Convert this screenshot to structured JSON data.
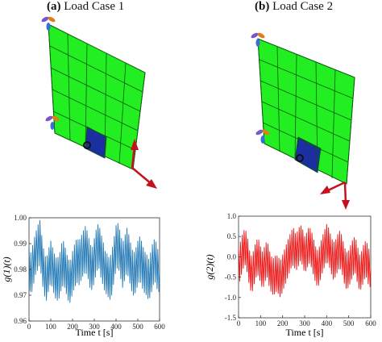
{
  "panels": [
    {
      "id": "a",
      "label_bold": "(a)",
      "label_rest": " Load Case 1"
    },
    {
      "id": "b",
      "label_bold": "(b)",
      "label_rest": " Load Case 2"
    }
  ],
  "colors": {
    "mesh_fill": "#22ee22",
    "mesh_line": "#0a5a0a",
    "loaded_cell": "#1c2fa0",
    "arrow": "#c4121d",
    "series_a": "#1f77b4",
    "series_b": "#ee1111"
  },
  "chart_data": [
    {
      "type": "line",
      "title": "",
      "xlabel": "Time t [s]",
      "ylabel": "g(1)(t)",
      "xlim": [
        0,
        600
      ],
      "ylim": [
        0.96,
        1.0
      ],
      "xticks": [
        "0",
        "100",
        "200",
        "300",
        "400",
        "500",
        "600"
      ],
      "yticks": [
        "0.96",
        "0.97",
        "0.98",
        "0.99",
        "1.00"
      ],
      "grid": false,
      "series": [
        {
          "color": "#1f77b4",
          "x": [
            0,
            10,
            20,
            30,
            40,
            50,
            60,
            70,
            80,
            90,
            100,
            110,
            120,
            130,
            140,
            150,
            160,
            170,
            180,
            190,
            200,
            210,
            220,
            230,
            240,
            250,
            260,
            270,
            280,
            290,
            300,
            310,
            320,
            330,
            340,
            350,
            360,
            370,
            380,
            390,
            400,
            410,
            420,
            430,
            440,
            450,
            460,
            470,
            480,
            490,
            500,
            510,
            520,
            530,
            540,
            550,
            560,
            570,
            580,
            590,
            600
          ],
          "y_mean": [
            0.981,
            0.978,
            0.983,
            0.986,
            0.989,
            0.991,
            0.984,
            0.978,
            0.976,
            0.98,
            0.983,
            0.98,
            0.977,
            0.976,
            0.978,
            0.982,
            0.983,
            0.979,
            0.976,
            0.975,
            0.979,
            0.982,
            0.984,
            0.983,
            0.985,
            0.987,
            0.988,
            0.986,
            0.982,
            0.98,
            0.984,
            0.988,
            0.99,
            0.986,
            0.983,
            0.979,
            0.978,
            0.976,
            0.979,
            0.984,
            0.989,
            0.99,
            0.986,
            0.982,
            0.985,
            0.988,
            0.985,
            0.981,
            0.978,
            0.98,
            0.983,
            0.985,
            0.982,
            0.979,
            0.978,
            0.976,
            0.979,
            0.983,
            0.984,
            0.98,
            0.979
          ],
          "y_low": [
            0.973,
            0.97,
            0.974,
            0.978,
            0.98,
            0.982,
            0.975,
            0.97,
            0.968,
            0.972,
            0.975,
            0.972,
            0.969,
            0.968,
            0.969,
            0.973,
            0.974,
            0.971,
            0.968,
            0.967,
            0.971,
            0.973,
            0.975,
            0.974,
            0.976,
            0.978,
            0.979,
            0.977,
            0.973,
            0.972,
            0.975,
            0.979,
            0.981,
            0.977,
            0.974,
            0.971,
            0.97,
            0.968,
            0.97,
            0.975,
            0.98,
            0.981,
            0.977,
            0.973,
            0.976,
            0.979,
            0.976,
            0.972,
            0.97,
            0.971,
            0.974,
            0.976,
            0.973,
            0.971,
            0.97,
            0.968,
            0.97,
            0.974,
            0.975,
            0.972,
            0.971
          ],
          "y_high": [
            0.989,
            0.986,
            0.991,
            0.994,
            0.997,
            0.999,
            0.992,
            0.986,
            0.984,
            0.988,
            0.991,
            0.988,
            0.985,
            0.984,
            0.986,
            0.99,
            0.991,
            0.987,
            0.984,
            0.983,
            0.987,
            0.99,
            0.992,
            0.991,
            0.993,
            0.995,
            0.997,
            0.994,
            0.99,
            0.988,
            0.992,
            0.996,
            0.998,
            0.994,
            0.991,
            0.987,
            0.986,
            0.984,
            0.987,
            0.992,
            0.997,
            0.998,
            0.994,
            0.99,
            0.993,
            0.996,
            0.993,
            0.989,
            0.986,
            0.988,
            0.991,
            0.993,
            0.99,
            0.987,
            0.986,
            0.984,
            0.987,
            0.991,
            0.992,
            0.988,
            0.987
          ]
        }
      ]
    },
    {
      "type": "line",
      "title": "",
      "xlabel": "Time t [s]",
      "ylabel": "g(2)(t)",
      "xlim": [
        0,
        600
      ],
      "ylim": [
        -1.5,
        1.0
      ],
      "xticks": [
        "0",
        "100",
        "200",
        "300",
        "400",
        "500",
        "600"
      ],
      "yticks": [
        "-1.5",
        "-1.0",
        "-0.5",
        "0.0",
        "0.5",
        "1.0"
      ],
      "grid": false,
      "series": [
        {
          "color": "#ee1111",
          "x": [
            0,
            10,
            20,
            30,
            40,
            50,
            60,
            70,
            80,
            90,
            100,
            110,
            120,
            130,
            140,
            150,
            160,
            170,
            180,
            190,
            200,
            210,
            220,
            230,
            240,
            250,
            260,
            270,
            280,
            290,
            300,
            310,
            320,
            330,
            340,
            350,
            360,
            370,
            380,
            390,
            400,
            410,
            420,
            430,
            440,
            450,
            460,
            470,
            480,
            490,
            500,
            510,
            520,
            530,
            540,
            550,
            560,
            570,
            580,
            590,
            600
          ],
          "y_mean": [
            -0.25,
            -0.05,
            0.15,
            0.25,
            0.05,
            -0.3,
            -0.45,
            -0.25,
            -0.05,
            0.0,
            -0.2,
            -0.35,
            -0.15,
            -0.05,
            -0.3,
            -0.45,
            -0.5,
            -0.4,
            -0.45,
            -0.55,
            -0.4,
            -0.25,
            -0.1,
            0.05,
            0.2,
            0.25,
            0.1,
            0.2,
            0.35,
            0.25,
            0.05,
            0.15,
            0.3,
            0.2,
            0.0,
            -0.2,
            -0.3,
            -0.15,
            0.05,
            0.2,
            0.35,
            0.25,
            0.05,
            -0.1,
            -0.05,
            0.1,
            0.2,
            0.05,
            -0.2,
            -0.35,
            -0.3,
            -0.15,
            0.0,
            0.05,
            -0.2,
            -0.4,
            -0.3,
            -0.1,
            -0.05,
            -0.25,
            -0.3
          ],
          "y_low": [
            -0.7,
            -0.5,
            -0.3,
            -0.2,
            -0.4,
            -0.75,
            -0.9,
            -0.7,
            -0.5,
            -0.45,
            -0.65,
            -0.8,
            -0.6,
            -0.5,
            -0.75,
            -0.9,
            -0.95,
            -0.85,
            -0.9,
            -1.0,
            -0.85,
            -0.7,
            -0.55,
            -0.4,
            -0.25,
            -0.2,
            -0.35,
            -0.25,
            -0.1,
            -0.2,
            -0.4,
            -0.3,
            -0.15,
            -0.25,
            -0.45,
            -0.65,
            -0.75,
            -0.6,
            -0.4,
            -0.25,
            -0.1,
            -0.2,
            -0.4,
            -0.55,
            -0.5,
            -0.35,
            -0.25,
            -0.4,
            -0.65,
            -0.8,
            -0.75,
            -0.6,
            -0.45,
            -0.4,
            -0.65,
            -0.85,
            -0.75,
            -0.55,
            -0.5,
            -0.7,
            -0.75
          ],
          "y_high": [
            0.2,
            0.4,
            0.6,
            0.7,
            0.5,
            0.15,
            0.0,
            0.2,
            0.4,
            0.45,
            0.25,
            0.1,
            0.3,
            0.4,
            0.15,
            0.0,
            -0.05,
            0.05,
            0.0,
            -0.1,
            0.05,
            0.2,
            0.35,
            0.5,
            0.65,
            0.7,
            0.55,
            0.65,
            0.8,
            0.7,
            0.5,
            0.6,
            0.75,
            0.65,
            0.45,
            0.25,
            0.15,
            0.3,
            0.5,
            0.65,
            0.8,
            0.7,
            0.5,
            0.35,
            0.4,
            0.55,
            0.65,
            0.5,
            0.25,
            0.1,
            0.15,
            0.3,
            0.45,
            0.5,
            0.25,
            0.05,
            0.15,
            0.35,
            0.4,
            0.2,
            0.15
          ]
        }
      ]
    }
  ]
}
